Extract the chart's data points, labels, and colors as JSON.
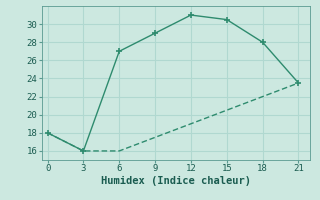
{
  "xlabel": "Humidex (Indice chaleur)",
  "line1_x": [
    0,
    3,
    6,
    9,
    12,
    15,
    18,
    21
  ],
  "line1_y": [
    18,
    16,
    27,
    29,
    31,
    30.5,
    28,
    23.5
  ],
  "line2_x": [
    0,
    3,
    6,
    9,
    12,
    15,
    18,
    21
  ],
  "line2_y": [
    18,
    16,
    16,
    17.5,
    19,
    20.5,
    22,
    23.5
  ],
  "line_color": "#2e8b6e",
  "bg_color": "#cce8e0",
  "grid_color": "#b0d8d0",
  "xlim": [
    -0.5,
    22
  ],
  "ylim": [
    15,
    32
  ],
  "xticks": [
    0,
    3,
    6,
    9,
    12,
    15,
    18,
    21
  ],
  "yticks": [
    16,
    18,
    20,
    22,
    24,
    26,
    28,
    30
  ],
  "tick_fontsize": 6.5,
  "label_fontsize": 7.5
}
